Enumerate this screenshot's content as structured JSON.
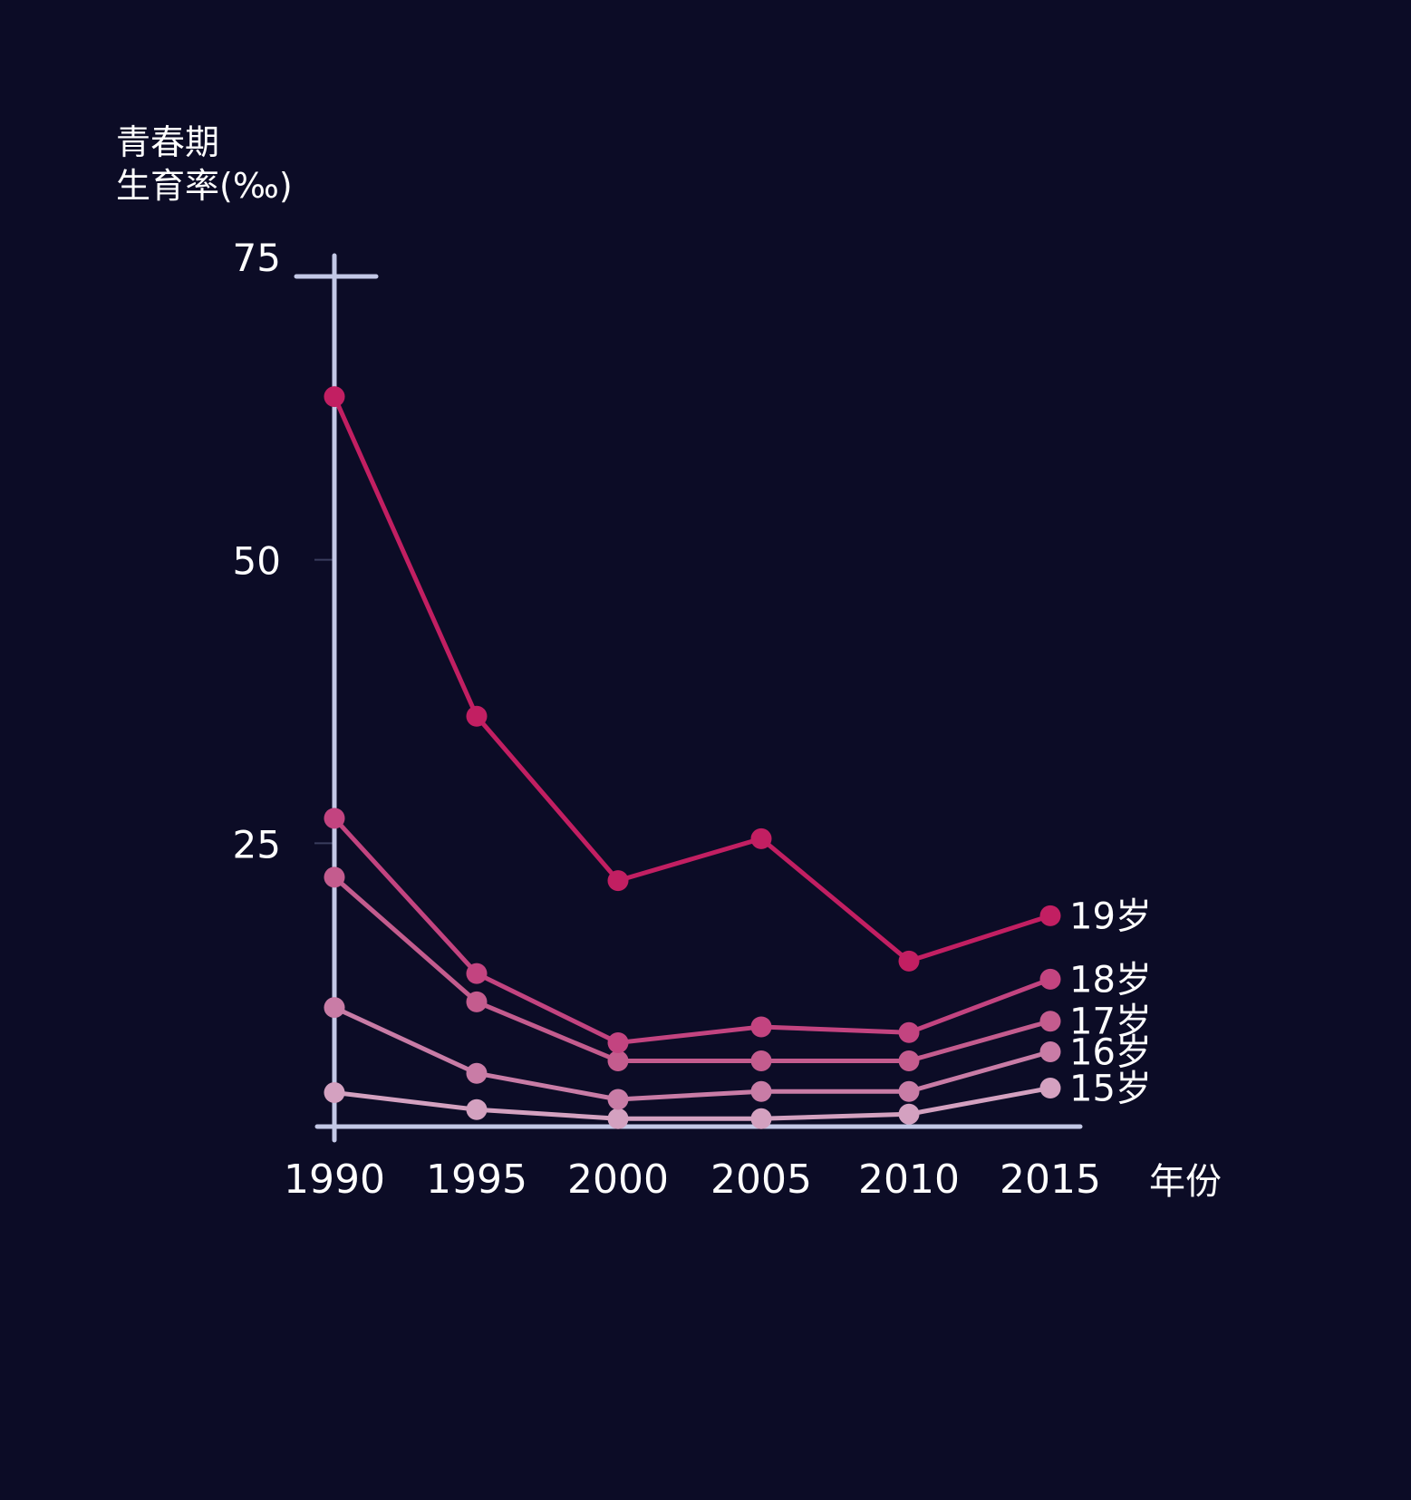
{
  "chart_data": {
    "type": "line",
    "ylabel_line1": "青春期",
    "ylabel_line2": "生育率(‰)",
    "xlabel": "年份",
    "x": [
      1990,
      1995,
      2000,
      2005,
      2010,
      2015
    ],
    "xtick_labels": [
      "1990",
      "1995",
      "2000",
      "2005",
      "2010",
      "2015"
    ],
    "yticks": [
      25,
      50,
      75
    ],
    "ytick_labels": [
      "25",
      "50",
      "75"
    ],
    "ylim": [
      0,
      75
    ],
    "grid": false,
    "legend": "inline-right",
    "series": [
      {
        "name": "15岁",
        "color": "#d4a1c0",
        "values": [
          3,
          1.5,
          0.7,
          0.7,
          1.1,
          3.4
        ]
      },
      {
        "name": "16岁",
        "color": "#c97ca6",
        "values": [
          10.5,
          4.7,
          2.4,
          3.1,
          3.1,
          6.6
        ]
      },
      {
        "name": "17岁",
        "color": "#c45c8e",
        "values": [
          22,
          11,
          5.8,
          5.8,
          5.8,
          9.3
        ]
      },
      {
        "name": "18岁",
        "color": "#c34480",
        "values": [
          27.2,
          13.5,
          7.4,
          8.8,
          8.3,
          13
        ]
      },
      {
        "name": "19岁",
        "color": "#c21f62",
        "values": [
          64.4,
          36.2,
          21.7,
          25.4,
          14.6,
          18.6
        ]
      }
    ]
  },
  "colors": {
    "background": "#0c0c26",
    "axis": "#c3c8e6",
    "text": "#ffffff"
  }
}
